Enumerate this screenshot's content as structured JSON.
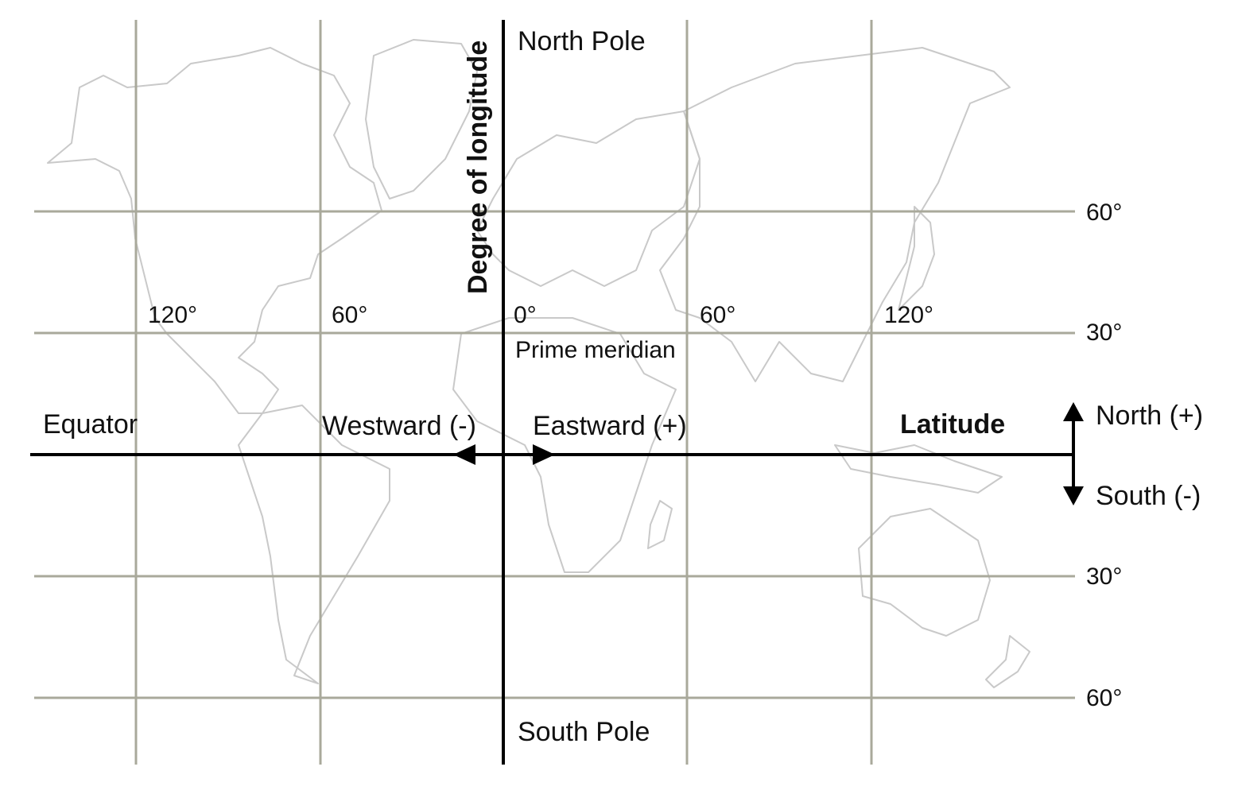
{
  "labels": {
    "north_pole": "North Pole",
    "south_pole": "South Pole",
    "degree_of_longitude": "Degree of longitude",
    "prime_meridian": "Prime meridian",
    "equator": "Equator",
    "westward": "Westward (-)",
    "eastward": "Eastward (+)",
    "latitude": "Latitude",
    "north": "North (+)",
    "south": "South (-)"
  },
  "longitude_ticks": [
    "120°",
    "60°",
    "0°",
    "60°",
    "120°"
  ],
  "latitude_ticks": [
    "60°",
    "30°",
    "30°",
    "60°"
  ],
  "colors": {
    "grid": "#a9a99b",
    "land_outline": "#c9c9c9",
    "axis": "#000000"
  }
}
